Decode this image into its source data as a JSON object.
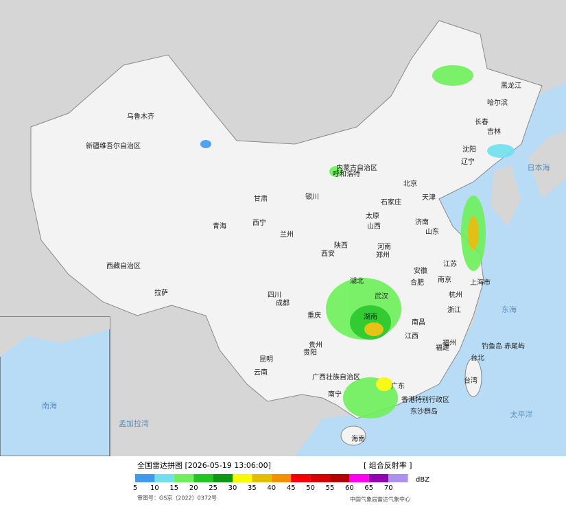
{
  "map": {
    "labels": [
      "新疆维吾尔自治区",
      "乌鲁木齐",
      "西藏自治区",
      "拉萨",
      "青海",
      "西宁",
      "甘肃",
      "兰州",
      "内蒙古自治区",
      "呼和浩特",
      "银川",
      "四川",
      "成都",
      "重庆",
      "贵州",
      "贵阳",
      "云南",
      "昆明",
      "广西壮族自治区",
      "南宁",
      "海南",
      "北京",
      "天津",
      "石家庄",
      "太原",
      "山西",
      "陕西",
      "西安",
      "河南",
      "郑州",
      "山东",
      "济南",
      "江苏",
      "南京",
      "安徽",
      "合肥",
      "上海市",
      "浙江",
      "杭州",
      "湖北",
      "武汉",
      "湖南",
      "江西",
      "南昌",
      "福建",
      "福州",
      "广东",
      "香港特别行政区",
      "台湾",
      "台北",
      "黑龙江",
      "哈尔滨",
      "吉林",
      "长春",
      "辽宁",
      "沈阳",
      "钓鱼岛",
      "赤尾屿",
      "东沙群岛"
    ],
    "seas": [
      "日本海",
      "东海",
      "太平洋",
      "孟加拉湾",
      "南海"
    ]
  },
  "legend": {
    "title": "全国雷达拼图 [2026-05-19 13:06:00]",
    "product": "[ 组合反射率 ]",
    "unit": "dBZ",
    "levels": [
      {
        "value": 5,
        "color": "#3d9af0"
      },
      {
        "value": 10,
        "color": "#6fe0ee"
      },
      {
        "value": 15,
        "color": "#6ef05a"
      },
      {
        "value": 20,
        "color": "#1ec81e"
      },
      {
        "value": 25,
        "color": "#0a9a10"
      },
      {
        "value": 30,
        "color": "#fafa00"
      },
      {
        "value": 35,
        "color": "#e6be00"
      },
      {
        "value": 40,
        "color": "#f59000"
      },
      {
        "value": 45,
        "color": "#f50000"
      },
      {
        "value": 50,
        "color": "#d20000"
      },
      {
        "value": 55,
        "color": "#b00000"
      },
      {
        "value": 60,
        "color": "#ff00f0"
      },
      {
        "value": 65,
        "color": "#9600b4"
      },
      {
        "value": 70,
        "color": "#ad90f0"
      }
    ]
  },
  "footer": {
    "approval": "审图号：GS京（2022）0372号",
    "agency": "中国气象局雷达气象中心"
  }
}
